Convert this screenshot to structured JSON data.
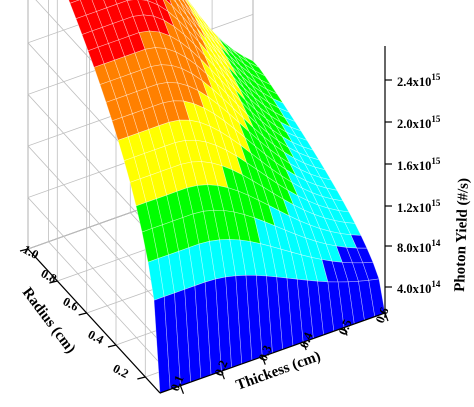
{
  "chart_data": {
    "type": "surface3d",
    "title": "",
    "xlabel": "Thickess (cm)",
    "ylabel": "Radius (cm)",
    "zlabel": "Photon Yield (#/s)",
    "x_ticks": [
      "0.1",
      "0.2",
      "0.3",
      "0.4",
      "0.5",
      "0.6"
    ],
    "y_ticks": [
      "0.2",
      "0.4",
      "0.6",
      "0.8",
      "1.0"
    ],
    "z_ticks": [
      "4.0x10",
      "8.0x10",
      "1.2x10",
      "1.6x10",
      "2.0x10",
      "2.4x10"
    ],
    "z_tick_exponents": [
      "14",
      "14",
      "15",
      "15",
      "15",
      "15"
    ],
    "z_tick_values": [
      400000000000000.0,
      800000000000000.0,
      1200000000000000.0,
      1600000000000000.0,
      2000000000000000.0,
      2400000000000000.0
    ],
    "xlim": [
      0.05,
      0.6
    ],
    "ylim": [
      0.1,
      1.0
    ],
    "zlim": [
      0,
      2600000000000000.0
    ],
    "grid": true,
    "colormap": {
      "levels": [
        0,
        400000000000000.0,
        800000000000000.0,
        1200000000000000.0,
        1600000000000000.0,
        2000000000000000.0,
        2400000000000000.0
      ],
      "colors": [
        "#0000ff",
        "#00ffff",
        "#00ff00",
        "#ffff00",
        "#ff8000",
        "#ff0000"
      ]
    },
    "surface_model": "Approximate photon yield as a function of radius and thickness; peak about 2.4x10^15 at radius 0.8-1.0 cm, thickness 0.1-0.25 cm, falling to about 3x10^14 at radius 0.1 cm, thickness 0.6 cm."
  }
}
